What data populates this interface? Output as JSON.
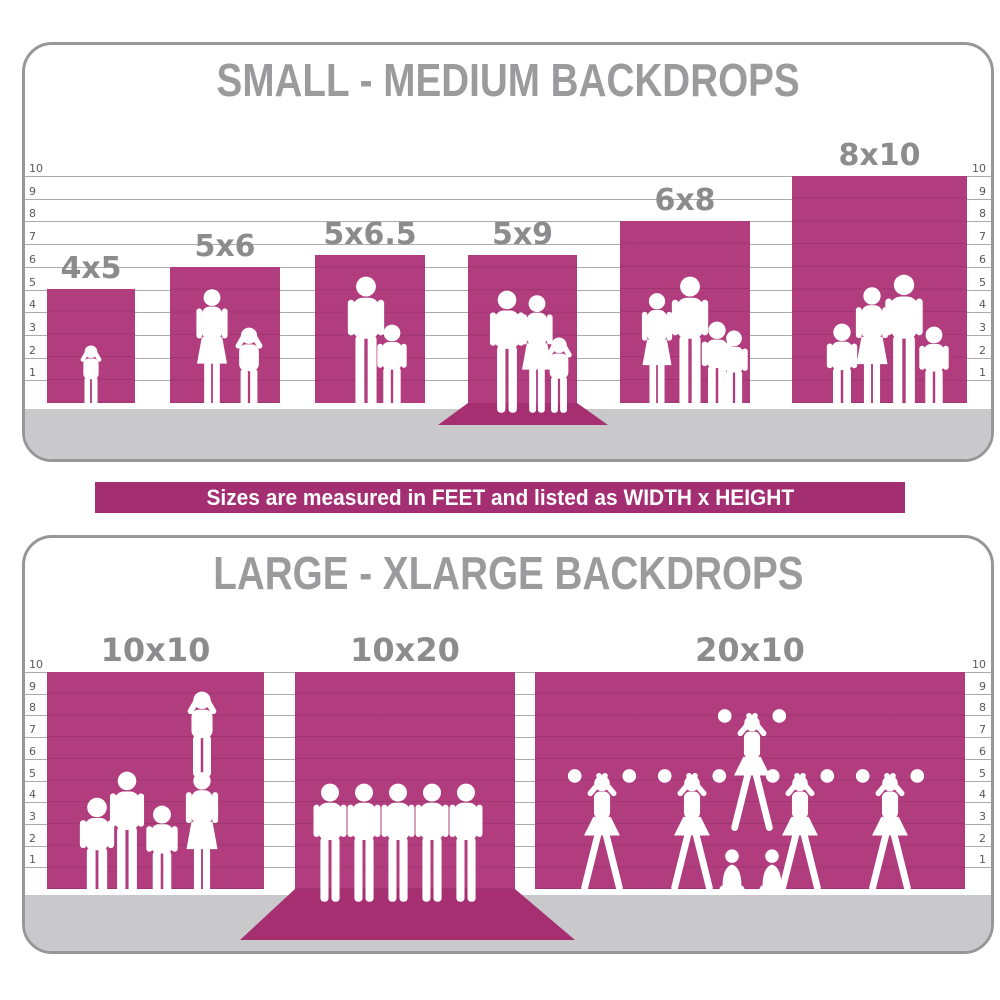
{
  "panels": [
    {
      "title": "SMALL - MEDIUM BACKDROPS",
      "ruler": {
        "unit": "feet",
        "numbers": [
          10,
          9,
          8,
          7,
          6,
          5,
          4,
          3,
          2,
          1
        ]
      },
      "backdrops": [
        {
          "label": "4x5",
          "width_ft": 4,
          "height_ft": 5,
          "floor_sweep": false
        },
        {
          "label": "5x6",
          "width_ft": 5,
          "height_ft": 6,
          "floor_sweep": false
        },
        {
          "label": "5x6.5",
          "width_ft": 5,
          "height_ft": 6.5,
          "floor_sweep": false
        },
        {
          "label": "5x9",
          "width_ft": 5,
          "height_ft": 9,
          "floor_sweep": true
        },
        {
          "label": "6x8",
          "width_ft": 6,
          "height_ft": 8,
          "floor_sweep": false
        },
        {
          "label": "8x10",
          "width_ft": 8,
          "height_ft": 10,
          "floor_sweep": false
        }
      ]
    },
    {
      "title": "LARGE - XLARGE BACKDROPS",
      "ruler": {
        "unit": "feet",
        "numbers": [
          10,
          9,
          8,
          7,
          6,
          5,
          4,
          3,
          2,
          1
        ]
      },
      "backdrops": [
        {
          "label": "10x10",
          "width_ft": 10,
          "height_ft": 10,
          "floor_sweep": false
        },
        {
          "label": "10x20",
          "width_ft": 10,
          "height_ft": 20,
          "floor_sweep": true
        },
        {
          "label": "20x10",
          "width_ft": 20,
          "height_ft": 10,
          "floor_sweep": false
        }
      ]
    }
  ],
  "banner": {
    "text": "Sizes are measured in FEET and listed as WIDTH x HEIGHT"
  },
  "colors": {
    "backdrop_magenta": "#b13d7e",
    "sweep_magenta": "#a52f71",
    "banner_magenta": "#a32e72",
    "floor_gray": "#c9c9cb",
    "title_gray": "#9b9b9e",
    "label_gray": "#8c8c8f",
    "gridline_gray": "#ababae",
    "ruler_number_gray": "#59595c"
  },
  "chart_data": [
    {
      "type": "bar",
      "title": "SMALL - MEDIUM BACKDROPS",
      "categories": [
        "4x5",
        "5x6",
        "5x6.5",
        "5x9",
        "6x8",
        "8x10"
      ],
      "series": [
        {
          "name": "width_ft",
          "values": [
            4,
            5,
            5,
            5,
            6,
            8
          ]
        },
        {
          "name": "height_ft",
          "values": [
            5,
            6,
            6.5,
            9,
            8,
            10
          ]
        }
      ],
      "ylabel": "feet",
      "ylim": [
        0,
        10
      ],
      "grid": true,
      "legend_position": "none"
    },
    {
      "type": "bar",
      "title": "LARGE - XLARGE BACKDROPS",
      "categories": [
        "10x10",
        "10x20",
        "20x10"
      ],
      "series": [
        {
          "name": "width_ft",
          "values": [
            10,
            10,
            20
          ]
        },
        {
          "name": "height_ft",
          "values": [
            10,
            20,
            10
          ]
        }
      ],
      "ylabel": "feet",
      "ylim": [
        0,
        10
      ],
      "grid": true,
      "legend_position": "none"
    }
  ]
}
